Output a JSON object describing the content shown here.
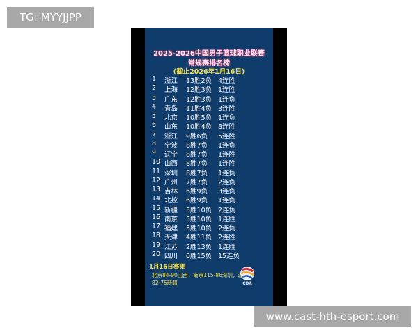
{
  "tag": "TG: MYYJJPP",
  "watermark": "www.cast-hth-esport.com",
  "title": "2025-2026中国男子篮球职业联赛",
  "subtitle": "常规赛排名榜",
  "date_note": "(截止2026年1月16日)",
  "standings": [
    {
      "rank": "1",
      "team": "浙江",
      "record": "13胜2负",
      "streak": "4连胜"
    },
    {
      "rank": "2",
      "team": "上海",
      "record": "12胜3负",
      "streak": "1连胜"
    },
    {
      "rank": "3",
      "team": "广东",
      "record": "12胜3负",
      "streak": "1连负"
    },
    {
      "rank": "4",
      "team": "青岛",
      "record": "11胜4负",
      "streak": "3连胜"
    },
    {
      "rank": "5",
      "team": "北京",
      "record": "10胜5负",
      "streak": "1连负"
    },
    {
      "rank": "6",
      "team": "山东",
      "record": "10胜4负",
      "streak": "8连胜"
    },
    {
      "rank": "7",
      "team": "浙江",
      "record": "9胜6负",
      "streak": "5连胜"
    },
    {
      "rank": "8",
      "team": "宁波",
      "record": "8胜7负",
      "streak": "1连负"
    },
    {
      "rank": "9",
      "team": "辽宁",
      "record": "8胜7负",
      "streak": "1连胜"
    },
    {
      "rank": "10",
      "team": "山西",
      "record": "8胜7负",
      "streak": "1连胜"
    },
    {
      "rank": "11",
      "team": "深圳",
      "record": "8胜7负",
      "streak": "1连负"
    },
    {
      "rank": "12",
      "team": "广州",
      "record": "7胜7负",
      "streak": "2连负"
    },
    {
      "rank": "13",
      "team": "吉林",
      "record": "6胜9负",
      "streak": "3连负"
    },
    {
      "rank": "14",
      "team": "北控",
      "record": "6胜9负",
      "streak": "1连负"
    },
    {
      "rank": "15",
      "team": "新疆",
      "record": "5胜10负",
      "streak": "2连负"
    },
    {
      "rank": "16",
      "team": "南京",
      "record": "5胜10负",
      "streak": "1连胜"
    },
    {
      "rank": "17",
      "team": "福建",
      "record": "5胜10负",
      "streak": "2连负"
    },
    {
      "rank": "18",
      "team": "天津",
      "record": "4胜11负",
      "streak": "2连胜"
    },
    {
      "rank": "19",
      "team": "江苏",
      "record": "2胜13负",
      "streak": "1连胜"
    },
    {
      "rank": "20",
      "team": "四川",
      "record": "0胜15负",
      "streak": "15连负"
    }
  ],
  "results_heading": "1月16日赛果",
  "results": "北京84-90山西，南京115-86深圳，辽宁82-75新疆",
  "logo": "CBA",
  "colors": {
    "panel": "#0f3c6a",
    "highlight": "#f5e04a",
    "title_glow": "#e0387a"
  }
}
